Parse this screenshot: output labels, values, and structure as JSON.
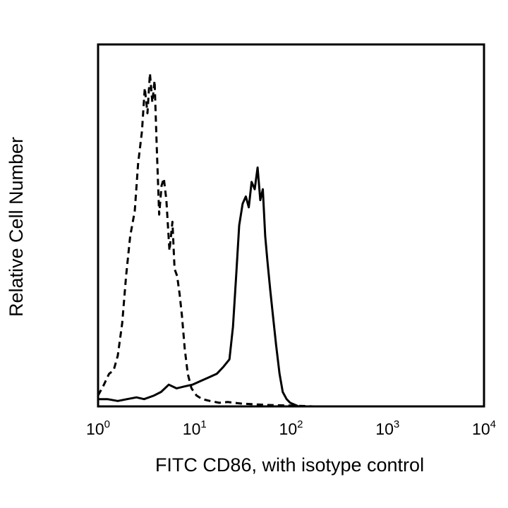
{
  "chart_data": {
    "type": "line",
    "title": "",
    "xlabel": "FITC CD86, with isotype control",
    "ylabel": "Relative Cell Number",
    "x_scale": "log10",
    "xlim": [
      1,
      10000
    ],
    "ylim": [
      0,
      1
    ],
    "grid": false,
    "legend": "none",
    "x_ticks": [
      {
        "base": "10",
        "exp": "0",
        "value": 1
      },
      {
        "base": "10",
        "exp": "1",
        "value": 10
      },
      {
        "base": "10",
        "exp": "2",
        "value": 100
      },
      {
        "base": "10",
        "exp": "3",
        "value": 1000
      },
      {
        "base": "10",
        "exp": "4",
        "value": 10000
      }
    ],
    "series": [
      {
        "style": "dashed",
        "color": "#000000",
        "x": [
          1.0,
          1.15,
          1.3,
          1.45,
          1.6,
          1.78,
          1.95,
          2.15,
          2.4,
          2.6,
          2.85,
          3.05,
          3.25,
          3.45,
          3.65,
          3.85,
          4.05,
          4.3,
          4.55,
          4.8,
          5.1,
          5.5,
          5.9,
          6.2,
          6.6,
          7.0,
          7.4,
          7.9,
          8.5,
          9.3,
          10.5,
          12.0,
          14.5,
          18.0,
          22.0,
          30.0,
          40.0,
          55.0,
          80.0,
          110,
          140,
          170
        ],
        "y": [
          0.03,
          0.06,
          0.09,
          0.1,
          0.14,
          0.23,
          0.36,
          0.47,
          0.54,
          0.67,
          0.76,
          0.88,
          0.81,
          0.92,
          0.84,
          0.9,
          0.72,
          0.53,
          0.61,
          0.63,
          0.57,
          0.43,
          0.51,
          0.38,
          0.36,
          0.31,
          0.25,
          0.16,
          0.09,
          0.05,
          0.03,
          0.02,
          0.015,
          0.01,
          0.012,
          0.008,
          0.006,
          0.004,
          0.003,
          0.002,
          0.001,
          0.0
        ]
      },
      {
        "style": "solid",
        "color": "#000000",
        "x": [
          1.0,
          1.25,
          1.6,
          2.0,
          2.5,
          3.0,
          3.8,
          4.5,
          5.4,
          6.5,
          7.8,
          9.5,
          11.5,
          14.0,
          17.0,
          20.0,
          23.0,
          25.0,
          27.0,
          29.0,
          31.5,
          34.0,
          36.5,
          39.0,
          42.0,
          45.0,
          48.0,
          51.0,
          54.0,
          57.0,
          61.0,
          65.0,
          70.0,
          76.0,
          82.0,
          90.0,
          98.0,
          108,
          120
        ],
        "y": [
          0.02,
          0.02,
          0.015,
          0.02,
          0.025,
          0.02,
          0.03,
          0.04,
          0.06,
          0.05,
          0.055,
          0.06,
          0.07,
          0.08,
          0.09,
          0.11,
          0.13,
          0.22,
          0.36,
          0.5,
          0.56,
          0.58,
          0.55,
          0.62,
          0.6,
          0.66,
          0.57,
          0.6,
          0.47,
          0.4,
          0.32,
          0.25,
          0.17,
          0.09,
          0.04,
          0.02,
          0.01,
          0.005,
          0.0
        ]
      }
    ]
  }
}
